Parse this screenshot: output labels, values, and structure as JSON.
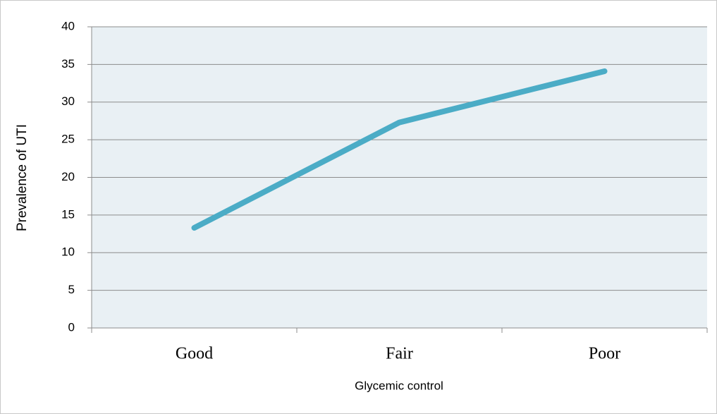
{
  "chart_data": {
    "type": "line",
    "x_label": "Glycemic control",
    "y_label": "Prevalence of UTI",
    "categories": [
      "Good",
      "Fair",
      "Poor"
    ],
    "values": [
      13.3,
      27.3,
      34.1
    ],
    "color": "#4bacc6",
    "ylim": [
      0,
      40
    ],
    "yticks": [
      0,
      5,
      10,
      15,
      20,
      25,
      30,
      35,
      40
    ],
    "grid": true
  }
}
